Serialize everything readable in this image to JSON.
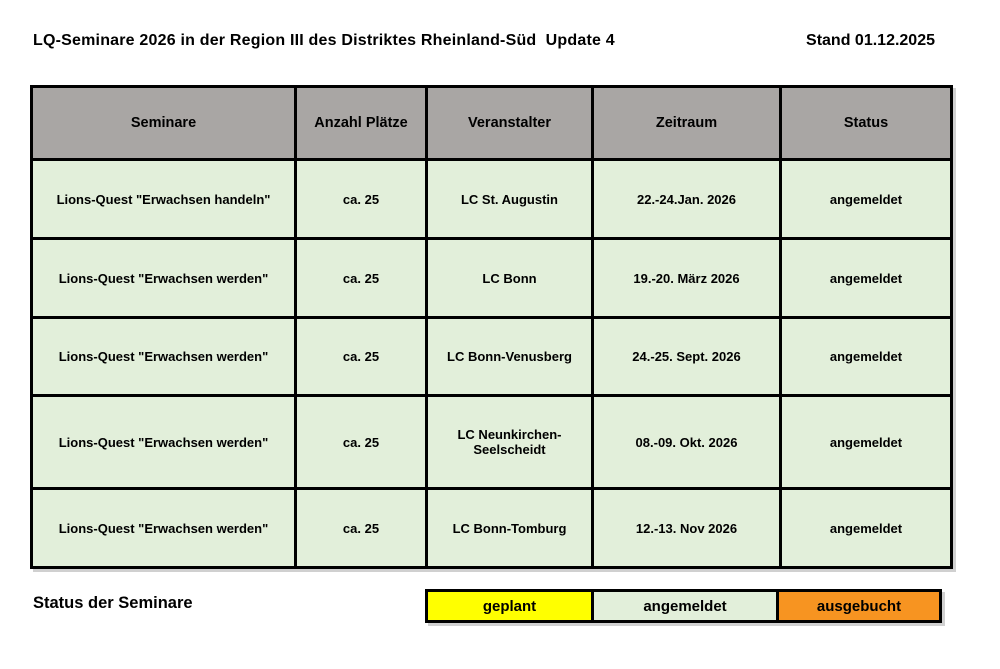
{
  "header": {
    "title": "LQ-Seminare 2026 in der Region III des Distriktes Rheinland-Süd  Update 4",
    "stand": "Stand 01.12.2025"
  },
  "colors": {
    "header_bg": "#a9a6a4",
    "row_bg": "#e2efda",
    "border": "#000000",
    "legend_geplant": "#ffff00",
    "legend_angemeldet": "#e2efda",
    "legend_ausgebucht": "#f79421"
  },
  "table": {
    "headers": [
      "Seminare",
      "Anzahl Plätze",
      "Veranstalter",
      "Zeitraum",
      "Status"
    ],
    "rows": [
      {
        "seminar": "Lions-Quest \"Erwachsen handeln\"",
        "plaetze": "ca. 25",
        "veranstalter": "LC St. Augustin",
        "zeitraum": "22.-24.Jan. 2026",
        "status": "angemeldet"
      },
      {
        "seminar": "Lions-Quest \"Erwachsen werden\"",
        "plaetze": "ca. 25",
        "veranstalter": "LC Bonn",
        "zeitraum": "19.-20. März 2026",
        "status": "angemeldet"
      },
      {
        "seminar": "Lions-Quest \"Erwachsen werden\"",
        "plaetze": "ca. 25",
        "veranstalter": "LC Bonn-Venusberg",
        "zeitraum": "24.-25. Sept. 2026",
        "status": "angemeldet"
      },
      {
        "seminar": "Lions-Quest \"Erwachsen werden\"",
        "plaetze": "ca. 25",
        "veranstalter": "LC Neunkirchen-Seelscheidt",
        "zeitraum": "08.-09. Okt. 2026",
        "status": "angemeldet"
      },
      {
        "seminar": "Lions-Quest \"Erwachsen werden\"",
        "plaetze": "ca. 25",
        "veranstalter": "LC Bonn-Tomburg",
        "zeitraum": "12.-13. Nov 2026",
        "status": "angemeldet"
      }
    ]
  },
  "legend": {
    "label": "Status der Seminare",
    "items": [
      {
        "label": "geplant",
        "color": "#ffff00"
      },
      {
        "label": "angemeldet",
        "color": "#e2efda"
      },
      {
        "label": "ausgebucht",
        "color": "#f79421"
      }
    ]
  }
}
